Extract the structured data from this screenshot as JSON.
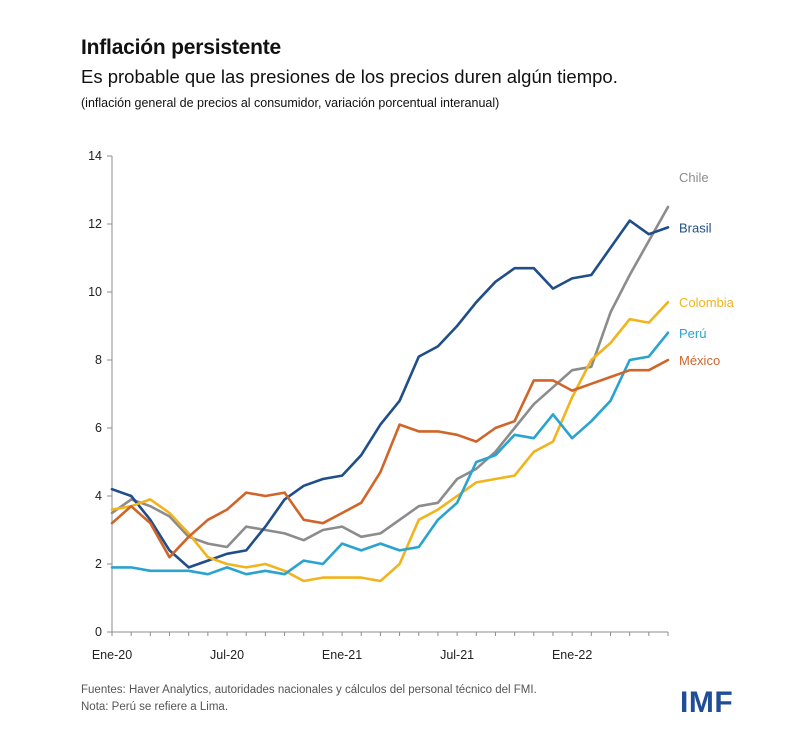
{
  "header": {
    "title": "Inflación persistente",
    "subtitle": "Es probable que las presiones de los precios duren algún tiempo.",
    "note": "(inflación general de precios al consumidor, variación porcentual interanual)"
  },
  "footer": {
    "sources": "Fuentes: Haver Analytics, autoridades nacionales y cálculos del personal técnico del FMI.",
    "note": "Nota: Perú se refiere a Lima.",
    "logo": "IMF"
  },
  "colors": {
    "Chile": "#8c8c8c",
    "Brasil": "#1f4e89",
    "Colombia": "#f2b41c",
    "Perú": "#2aa3cf",
    "México": "#d0652a"
  },
  "chart_data": {
    "type": "line",
    "title": "",
    "xlabel": "",
    "ylabel": "",
    "ylim": [
      0,
      14
    ],
    "yticks": [
      0,
      2,
      4,
      6,
      8,
      10,
      12,
      14
    ],
    "x": [
      "2020-01",
      "2020-02",
      "2020-03",
      "2020-04",
      "2020-05",
      "2020-06",
      "2020-07",
      "2020-08",
      "2020-09",
      "2020-10",
      "2020-11",
      "2020-12",
      "2021-01",
      "2021-02",
      "2021-03",
      "2021-04",
      "2021-05",
      "2021-06",
      "2021-07",
      "2021-08",
      "2021-09",
      "2021-10",
      "2021-11",
      "2021-12",
      "2022-01",
      "2022-02",
      "2022-03",
      "2022-04",
      "2022-05",
      "2022-06"
    ],
    "xtick_labels": [
      {
        "x": "2020-01",
        "label": "Ene-20"
      },
      {
        "x": "2020-07",
        "label": "Jul-20"
      },
      {
        "x": "2021-01",
        "label": "Ene-21"
      },
      {
        "x": "2021-07",
        "label": "Jul-21"
      },
      {
        "x": "2022-01",
        "label": "Ene-22"
      }
    ],
    "grid": false,
    "legend": "end-of-line labels",
    "series": [
      {
        "name": "Chile",
        "values": [
          3.5,
          3.9,
          3.7,
          3.4,
          2.8,
          2.6,
          2.5,
          3.1,
          3.0,
          2.9,
          2.7,
          3.0,
          3.1,
          2.8,
          2.9,
          3.3,
          3.7,
          3.8,
          4.5,
          4.8,
          5.3,
          6.0,
          6.7,
          7.2,
          7.7,
          7.8,
          9.4,
          10.5,
          11.5,
          12.5
        ]
      },
      {
        "name": "Brasil",
        "values": [
          4.2,
          4.0,
          3.3,
          2.4,
          1.9,
          2.1,
          2.3,
          2.4,
          3.1,
          3.9,
          4.3,
          4.5,
          4.6,
          5.2,
          6.1,
          6.8,
          8.1,
          8.4,
          9.0,
          9.7,
          10.3,
          10.7,
          10.7,
          10.1,
          10.4,
          10.5,
          11.3,
          12.1,
          11.7,
          11.9
        ]
      },
      {
        "name": "Colombia",
        "values": [
          3.6,
          3.7,
          3.9,
          3.5,
          2.9,
          2.2,
          2.0,
          1.9,
          2.0,
          1.8,
          1.5,
          1.6,
          1.6,
          1.6,
          1.5,
          2.0,
          3.3,
          3.6,
          4.0,
          4.4,
          4.5,
          4.6,
          5.3,
          5.6,
          6.9,
          8.0,
          8.5,
          9.2,
          9.1,
          9.7
        ]
      },
      {
        "name": "Perú",
        "values": [
          1.9,
          1.9,
          1.8,
          1.8,
          1.8,
          1.7,
          1.9,
          1.7,
          1.8,
          1.7,
          2.1,
          2.0,
          2.6,
          2.4,
          2.6,
          2.4,
          2.5,
          3.3,
          3.8,
          5.0,
          5.2,
          5.8,
          5.7,
          6.4,
          5.7,
          6.2,
          6.8,
          8.0,
          8.1,
          8.8
        ]
      },
      {
        "name": "México",
        "values": [
          3.2,
          3.7,
          3.2,
          2.2,
          2.8,
          3.3,
          3.6,
          4.1,
          4.0,
          4.1,
          3.3,
          3.2,
          3.5,
          3.8,
          4.7,
          6.1,
          5.9,
          5.9,
          5.8,
          5.6,
          6.0,
          6.2,
          7.4,
          7.4,
          7.1,
          7.3,
          7.5,
          7.7,
          7.7,
          8.0
        ]
      }
    ]
  }
}
